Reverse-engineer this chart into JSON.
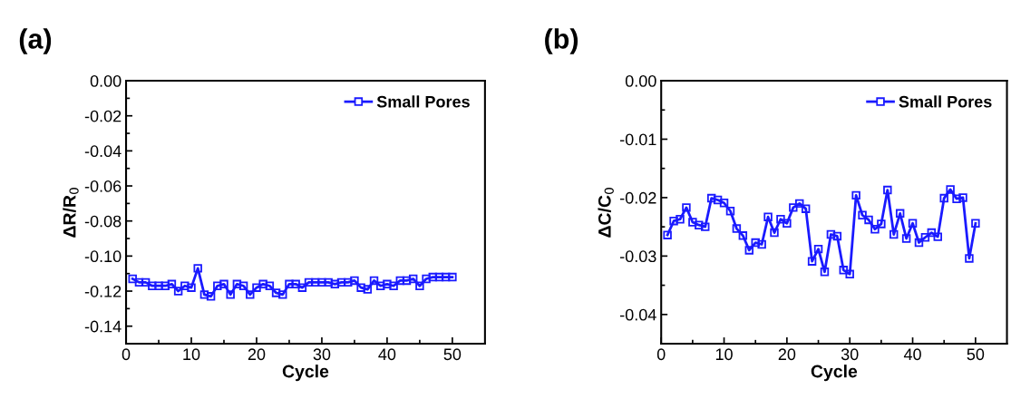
{
  "chart_data": [
    {
      "type": "line",
      "title": "(a)",
      "xlabel": "Cycle",
      "ylabel": "ΔR/R$_{0}$",
      "marker": "square",
      "line_style": "solid",
      "legend": "top right",
      "grid": false,
      "x": [
        1,
        2,
        3,
        4,
        5,
        6,
        7,
        8,
        9,
        10,
        11,
        12,
        13,
        14,
        15,
        16,
        17,
        18,
        19,
        20,
        21,
        22,
        23,
        24,
        25,
        26,
        27,
        28,
        29,
        30,
        31,
        32,
        33,
        34,
        35,
        36,
        37,
        38,
        39,
        40,
        41,
        42,
        43,
        44,
        45,
        46,
        47,
        48,
        49,
        50
      ],
      "xlim": [
        0,
        55
      ],
      "xticks": [
        0,
        10,
        20,
        30,
        40,
        50
      ],
      "ylim": [
        -0.15,
        0.0
      ],
      "yticks": [
        {
          "value": -0.14,
          "label": "-0.14"
        },
        {
          "value": -0.12,
          "label": "-0.12"
        },
        {
          "value": -0.1,
          "label": "-0.10"
        },
        {
          "value": -0.08,
          "label": "-0.08"
        },
        {
          "value": -0.06,
          "label": "-0.06"
        },
        {
          "value": -0.04,
          "label": "-0.04"
        },
        {
          "value": -0.02,
          "label": "-0.02"
        },
        {
          "value": 0.0,
          "label": "0.00"
        }
      ],
      "series": [
        {
          "name": "Small Pores",
          "color": "#1a1aff",
          "values": [
            -0.113,
            -0.115,
            -0.115,
            -0.117,
            -0.117,
            -0.117,
            -0.116,
            -0.12,
            -0.117,
            -0.118,
            -0.107,
            -0.122,
            -0.123,
            -0.117,
            -0.116,
            -0.122,
            -0.116,
            -0.117,
            -0.122,
            -0.118,
            -0.116,
            -0.117,
            -0.121,
            -0.122,
            -0.116,
            -0.116,
            -0.118,
            -0.115,
            -0.115,
            -0.115,
            -0.115,
            -0.116,
            -0.115,
            -0.115,
            -0.114,
            -0.118,
            -0.119,
            -0.114,
            -0.117,
            -0.116,
            -0.117,
            -0.114,
            -0.114,
            -0.113,
            -0.117,
            -0.113,
            -0.112,
            -0.112,
            -0.112,
            -0.112
          ]
        }
      ]
    },
    {
      "type": "line",
      "title": "(b)",
      "xlabel": "Cycle",
      "ylabel": "ΔC/C$_{0}$",
      "marker": "square",
      "line_style": "solid",
      "legend": "top right",
      "grid": false,
      "x": [
        1,
        2,
        3,
        4,
        5,
        6,
        7,
        8,
        9,
        10,
        11,
        12,
        13,
        14,
        15,
        16,
        17,
        18,
        19,
        20,
        21,
        22,
        23,
        24,
        25,
        26,
        27,
        28,
        29,
        30,
        31,
        32,
        33,
        34,
        35,
        36,
        37,
        38,
        39,
        40,
        41,
        42,
        43,
        44,
        45,
        46,
        47,
        48,
        49,
        50
      ],
      "xlim": [
        0,
        55
      ],
      "xticks": [
        0,
        10,
        20,
        30,
        40,
        50
      ],
      "ylim": [
        -0.045,
        0.0
      ],
      "yticks": [
        {
          "value": -0.04,
          "label": "-0.04"
        },
        {
          "value": -0.03,
          "label": "-0.03"
        },
        {
          "value": -0.02,
          "label": "-0.02"
        },
        {
          "value": -0.01,
          "label": "-0.01"
        },
        {
          "value": 0.0,
          "label": "0.00"
        }
      ],
      "series": [
        {
          "name": "Small Pores",
          "color": "#1a1aff",
          "values": [
            -0.0264,
            -0.024,
            -0.0237,
            -0.0217,
            -0.0242,
            -0.0247,
            -0.025,
            -0.0201,
            -0.0204,
            -0.0209,
            -0.0223,
            -0.0253,
            -0.0265,
            -0.029,
            -0.0277,
            -0.028,
            -0.0233,
            -0.026,
            -0.0237,
            -0.0244,
            -0.0217,
            -0.021,
            -0.0219,
            -0.0309,
            -0.0288,
            -0.0327,
            -0.0263,
            -0.0266,
            -0.0324,
            -0.0331,
            -0.0196,
            -0.023,
            -0.0238,
            -0.0254,
            -0.0245,
            -0.0187,
            -0.0263,
            -0.0227,
            -0.027,
            -0.0244,
            -0.0277,
            -0.0268,
            -0.026,
            -0.0267,
            -0.0201,
            -0.0186,
            -0.0202,
            -0.02,
            -0.0304,
            -0.0244
          ]
        }
      ]
    }
  ]
}
